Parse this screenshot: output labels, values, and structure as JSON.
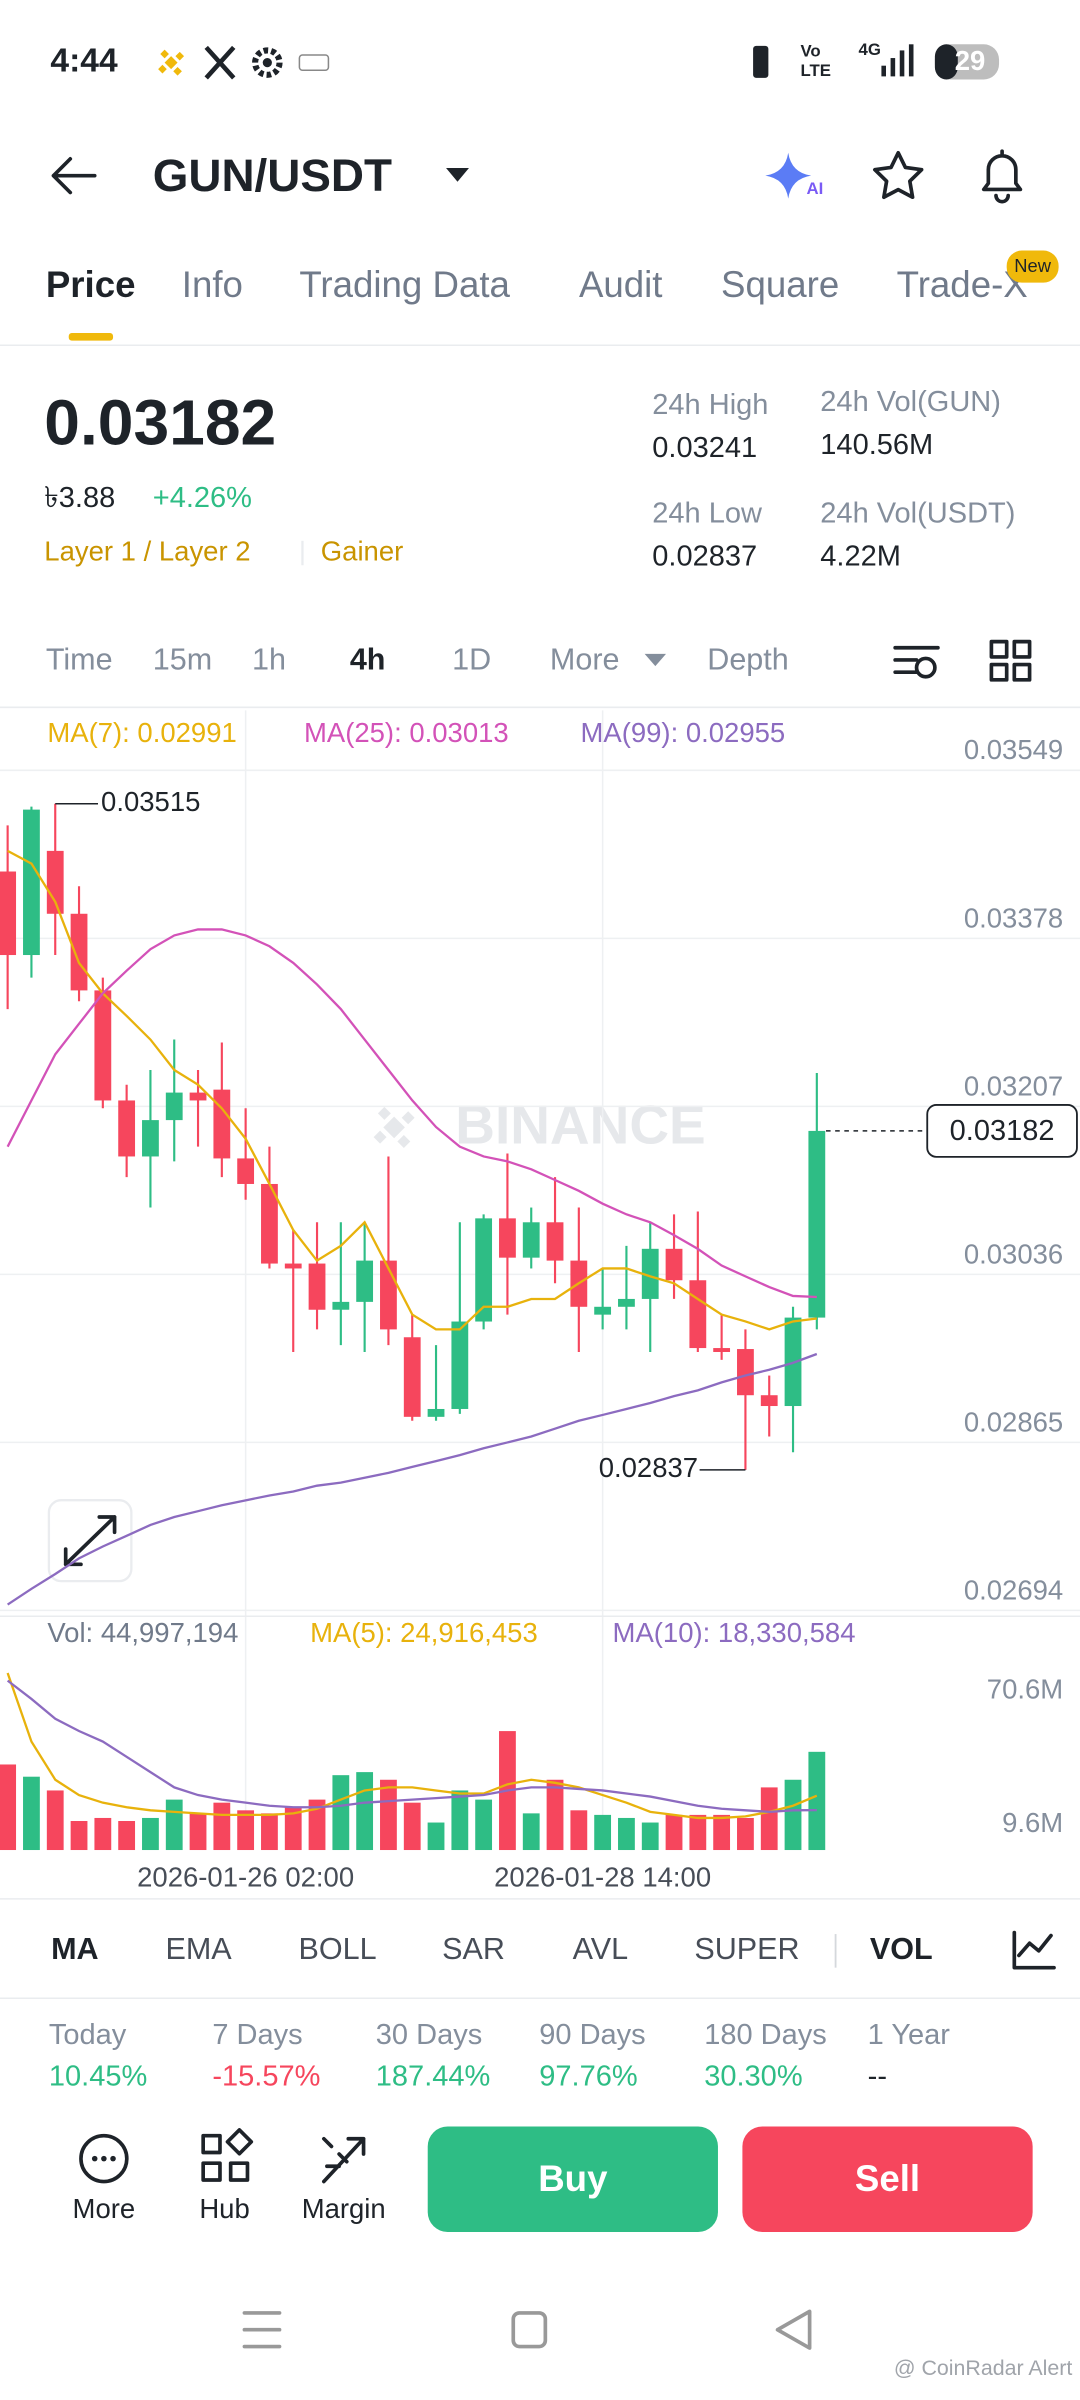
{
  "status_bar": {
    "time": "4:44",
    "volte_top": "Vo",
    "volte_bottom": "LTE",
    "network": "4G",
    "battery": "29"
  },
  "header": {
    "pair": "GUN/USDT",
    "ai_badge": "AI"
  },
  "tabs": [
    "Price",
    "Info",
    "Trading Data",
    "Audit",
    "Square",
    "Trade-X"
  ],
  "new_badge": "New",
  "price": {
    "last": "0.03182",
    "fiat": "৳3.88",
    "change": "+4.26%",
    "tags": [
      "Layer 1 / Layer 2",
      "Gainer"
    ]
  },
  "stats": [
    {
      "label": "24h High",
      "value": "0.03241"
    },
    {
      "label": "24h Vol(GUN)",
      "value": "140.56M"
    },
    {
      "label": "24h Low",
      "value": "0.02837"
    },
    {
      "label": "24h Vol(USDT)",
      "value": "4.22M"
    }
  ],
  "intervals": [
    "Time",
    "15m",
    "1h",
    "4h",
    "1D",
    "More",
    "Depth"
  ],
  "chart_watermark": "BINANCE",
  "chart_data": [
    {
      "type": "candlestick",
      "categories": [
        null,
        null,
        null,
        null,
        null,
        null,
        null,
        null,
        null,
        null,
        "2026-01-26 02:00",
        null,
        null,
        null,
        null,
        null,
        null,
        null,
        null,
        null,
        null,
        null,
        null,
        null,
        null,
        "2026-01-28 14:00",
        null,
        null,
        null,
        null,
        null,
        null,
        null,
        null,
        null
      ],
      "open": [
        0.03446,
        0.03361,
        0.03467,
        0.03403,
        0.03325,
        0.03213,
        0.03156,
        0.03193,
        0.03221,
        0.03224,
        0.03154,
        0.03128,
        0.03047,
        0.03047,
        0.03,
        0.03008,
        0.0305,
        0.02972,
        0.02891,
        0.02899,
        0.02988,
        0.03093,
        0.03053,
        0.03089,
        0.0305,
        0.02995,
        0.03003,
        0.03011,
        0.03062,
        0.0303,
        0.02961,
        0.0296,
        0.02913,
        0.02902,
        0.02992
      ],
      "high": [
        0.03493,
        0.03512,
        0.03515,
        0.03431,
        0.03338,
        0.03229,
        0.03244,
        0.03275,
        0.03244,
        0.03272,
        0.03205,
        0.03166,
        0.03081,
        0.03089,
        0.03089,
        0.03089,
        0.03156,
        0.02995,
        0.02964,
        0.03089,
        0.03097,
        0.03159,
        0.03104,
        0.03135,
        0.03104,
        0.03042,
        0.03065,
        0.03089,
        0.03097,
        0.031,
        0.02995,
        0.0298,
        0.02933,
        0.03003,
        0.03241
      ],
      "low": [
        0.03306,
        0.03338,
        0.03361,
        0.03314,
        0.03205,
        0.03135,
        0.03104,
        0.03151,
        0.03166,
        0.03135,
        0.03112,
        0.03042,
        0.02957,
        0.0298,
        0.02964,
        0.02957,
        0.02964,
        0.02887,
        0.02887,
        0.02894,
        0.0298,
        0.02995,
        0.03042,
        0.03027,
        0.02957,
        0.0298,
        0.0298,
        0.02957,
        0.03011,
        0.02957,
        0.02949,
        0.02837,
        0.02871,
        0.02855,
        0.0298
      ],
      "close": [
        0.03361,
        0.03509,
        0.03403,
        0.03325,
        0.03213,
        0.03156,
        0.03193,
        0.03221,
        0.03213,
        0.03154,
        0.03128,
        0.03047,
        0.03042,
        0.03,
        0.03008,
        0.0305,
        0.0298,
        0.02891,
        0.02899,
        0.02988,
        0.03093,
        0.03053,
        0.03089,
        0.0305,
        0.03003,
        0.03003,
        0.03011,
        0.03062,
        0.0303,
        0.02961,
        0.02957,
        0.02913,
        0.02902,
        0.02992,
        0.03182
      ],
      "up_color": "#2EBD85",
      "down_color": "#F6465D",
      "series": [
        {
          "name": "MA(7): 0.02991",
          "color": "#E8B20C",
          "values": [
            0.03467,
            0.03454,
            0.03415,
            0.03353,
            0.03322,
            0.03299,
            0.03275,
            0.03244,
            0.03229,
            0.03205,
            0.03174,
            0.03128,
            0.03081,
            0.0305,
            0.03065,
            0.03089,
            0.03042,
            0.02995,
            0.0298,
            0.0298,
            0.03003,
            0.03003,
            0.03011,
            0.03011,
            0.03027,
            0.03042,
            0.03042,
            0.03034,
            0.03027,
            0.03011,
            0.02995,
            0.02988,
            0.0298,
            0.02988,
            0.02991
          ]
        },
        {
          "name": "MA(25): 0.03013",
          "color": "#D352B8",
          "values": [
            0.03166,
            0.03213,
            0.0326,
            0.03291,
            0.03322,
            0.03345,
            0.03367,
            0.03381,
            0.03387,
            0.03387,
            0.03381,
            0.0337,
            0.03353,
            0.03331,
            0.03306,
            0.03275,
            0.03244,
            0.03213,
            0.03186,
            0.03166,
            0.03156,
            0.03151,
            0.03143,
            0.03132,
            0.03121,
            0.03108,
            0.03097,
            0.03089,
            0.03076,
            0.03062,
            0.03045,
            0.03034,
            0.03023,
            0.03014,
            0.03013
          ]
        },
        {
          "name": "MA(99): 0.02955",
          "color": "#8C6BC0",
          "values": [
            0.027,
            0.02716,
            0.02731,
            0.02747,
            0.02759,
            0.0277,
            0.02781,
            0.02789,
            0.02795,
            0.02801,
            0.02806,
            0.02811,
            0.02815,
            0.02821,
            0.02824,
            0.02829,
            0.02834,
            0.0284,
            0.02846,
            0.02852,
            0.02859,
            0.02865,
            0.02871,
            0.02879,
            0.02887,
            0.02893,
            0.02899,
            0.02905,
            0.02912,
            0.02918,
            0.02926,
            0.02933,
            0.02939,
            0.02946,
            0.02955
          ]
        }
      ],
      "ylim": [
        0.02688,
        0.0361
      ],
      "yticks": [
        0.03549,
        0.03378,
        0.03207,
        0.03036,
        0.02865,
        0.02694
      ],
      "grid": true
    },
    {
      "type": "bar",
      "series": [
        {
          "name": "Vol: 44,997,194",
          "values": [
            39.2,
            33.6,
            27.3,
            13.3,
            14.7,
            13.3,
            14.7,
            23.1,
            16.8,
            21.7,
            18.2,
            16.8,
            19.6,
            23.1,
            34.3,
            35.7,
            32.2,
            21.7,
            12.6,
            27.3,
            23.1,
            54.5,
            16.8,
            32.2,
            18.2,
            16.1,
            14.7,
            12.6,
            16.1,
            16.1,
            16.1,
            14.7,
            28.7,
            32.2,
            45.0
          ]
        },
        {
          "name": "MA(5): 24,916,453",
          "type": "line",
          "color": "#E8B20C",
          "values": [
            81.1,
            49.7,
            32.2,
            25.2,
            21.7,
            19.6,
            18.2,
            17.5,
            16.8,
            16.1,
            16.1,
            16.1,
            16.8,
            18.9,
            23.1,
            27.3,
            28.7,
            28.7,
            27.3,
            25.9,
            25.9,
            30.1,
            32.2,
            30.8,
            28.7,
            25.2,
            21.7,
            17.5,
            16.1,
            14.7,
            14.7,
            15.4,
            17.5,
            20.3,
            24.9
          ]
        },
        {
          "name": "MA(10): 18,330,584",
          "type": "line",
          "color": "#8C6BC0",
          "values": [
            77.6,
            69.2,
            60.1,
            54.5,
            49.7,
            42.7,
            35.7,
            28.7,
            25.2,
            23.1,
            21.7,
            20.3,
            19.6,
            19.6,
            20.3,
            21.7,
            22.4,
            23.1,
            23.8,
            24.5,
            25.2,
            27.3,
            28.7,
            28.7,
            28.0,
            27.3,
            25.9,
            24.5,
            22.4,
            20.3,
            18.9,
            18.2,
            17.5,
            18.2,
            18.3
          ]
        }
      ],
      "ylim": [
        0,
        84
      ],
      "yticks": [
        {
          "value": 70.6,
          "label": "70.6M"
        },
        {
          "value": 9.6,
          "label": "9.6M"
        }
      ]
    }
  ],
  "indicators": [
    "MA",
    "EMA",
    "BOLL",
    "SAR",
    "AVL",
    "SUPER",
    "VOL"
  ],
  "performance": [
    {
      "label": "Today",
      "value": "10.45%",
      "color": "#2EBD85"
    },
    {
      "label": "7 Days",
      "value": "-15.57%",
      "color": "#F6465D"
    },
    {
      "label": "30 Days",
      "value": "187.44%",
      "color": "#2EBD85"
    },
    {
      "label": "90 Days",
      "value": "97.76%",
      "color": "#2EBD85"
    },
    {
      "label": "180 Days",
      "value": "30.30%",
      "color": "#2EBD85"
    },
    {
      "label": "1 Year",
      "value": "--",
      "color": "#1E2329"
    }
  ],
  "actions": [
    "More",
    "Hub",
    "Margin"
  ],
  "buttons": {
    "buy": "Buy",
    "sell": "Sell"
  },
  "watermark": "@ CoinRadar Alert"
}
